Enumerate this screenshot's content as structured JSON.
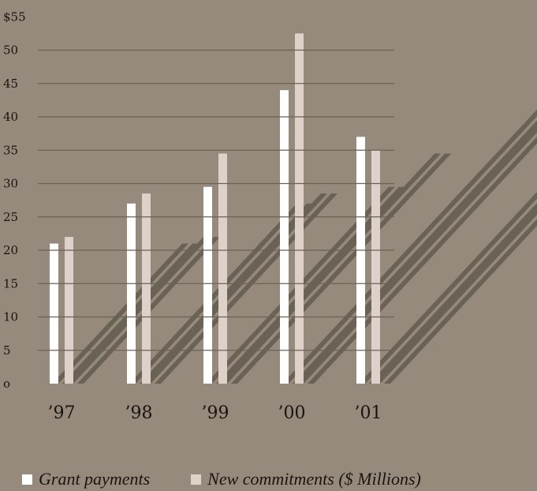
{
  "colors": {
    "background": "#968a7c",
    "grant": "#ffffff",
    "commit": "#ddd1c9",
    "shadow": "#6b6256",
    "text": "#1a1410"
  },
  "chart_data": {
    "type": "bar",
    "categories": [
      "’97",
      "’98",
      "’99",
      "’00",
      "’01"
    ],
    "series": [
      {
        "name": "Grant payments",
        "values": [
          21,
          27,
          29.5,
          44,
          37
        ]
      },
      {
        "name": "New commitments ($ Millions)",
        "values": [
          22,
          28.5,
          34.5,
          52.5,
          35
        ]
      }
    ],
    "ylim": [
      0,
      55
    ],
    "y_ticks": [
      0,
      5,
      10,
      15,
      20,
      25,
      30,
      35,
      40,
      45,
      50,
      55
    ],
    "y_tick_labels": [
      "o",
      "5",
      "10",
      "15",
      "20",
      "25",
      "30",
      "35",
      "40",
      "45",
      "50",
      "$55"
    ],
    "grid": "horizontal lines over bars",
    "legend_position": "bottom-left",
    "title": "",
    "xlabel": "",
    "ylabel": ""
  },
  "legend": {
    "grant_label": "Grant payments",
    "commit_label": "New commitments  ($ Millions)"
  }
}
